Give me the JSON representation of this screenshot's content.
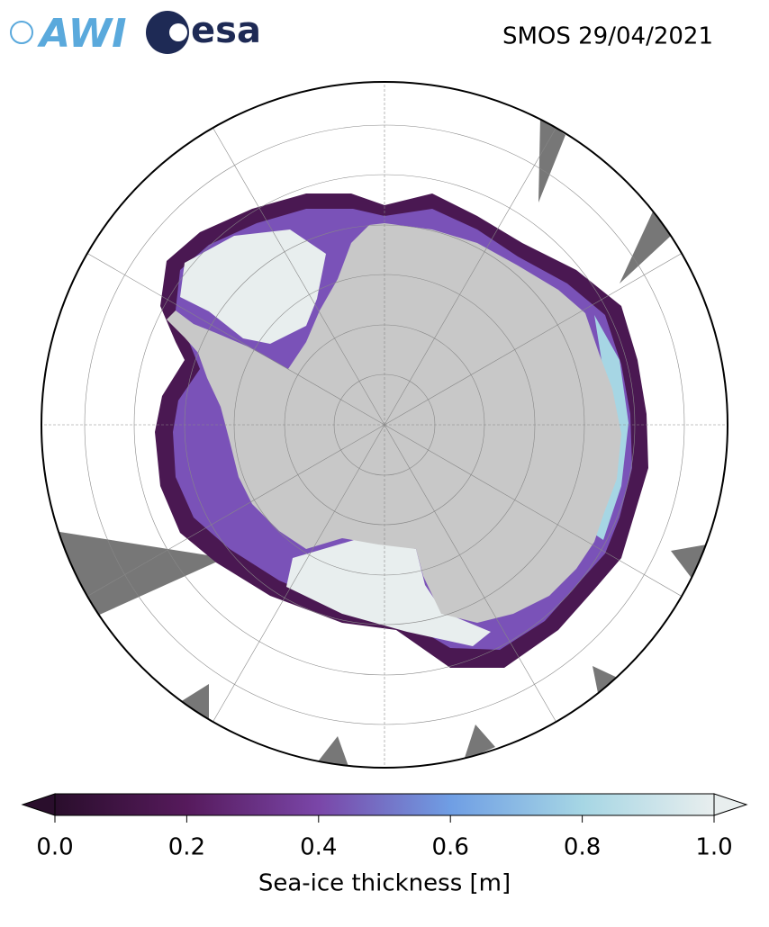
{
  "header": {
    "logos": [
      "AWI",
      "esa"
    ],
    "title": "SMOS 29/04/2021"
  },
  "colorbar": {
    "label": "Sea-ice thickness [m]",
    "lim": [
      0,
      1
    ],
    "ticks": [
      {
        "value": 0,
        "label": "0.0"
      },
      {
        "value": 0.2,
        "label": "0.2"
      },
      {
        "value": 0.4,
        "label": "0.4"
      },
      {
        "value": 0.6,
        "label": "0.6"
      },
      {
        "value": 0.8,
        "label": "0.8"
      },
      {
        "value": 1,
        "label": "1.0"
      }
    ],
    "colormap": [
      "#2a0e2c",
      "#561a5c",
      "#7a46a8",
      "#6f9ee4",
      "#a6d6e4",
      "#e8eeee"
    ]
  }
}
